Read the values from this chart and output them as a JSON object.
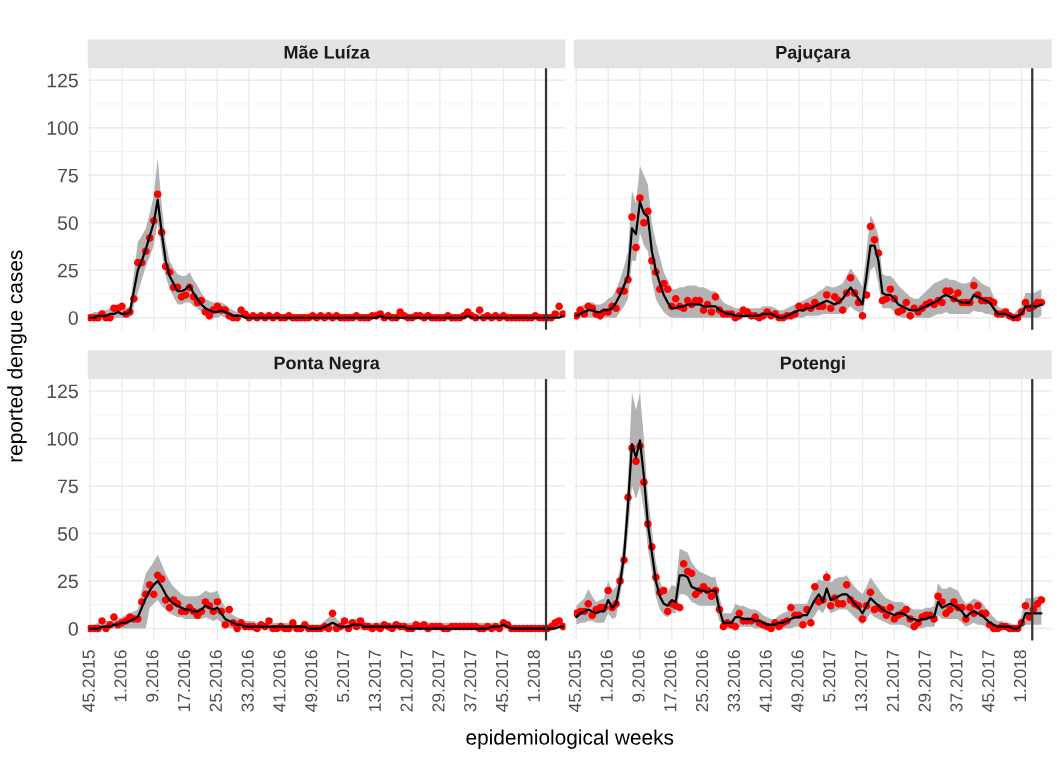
{
  "chart_data": [
    {
      "type": "line",
      "title": "Mãe Luíza",
      "ylabel": "reported dengue cases",
      "tick_labels": "y",
      "grid": true,
      "ylim": [
        -6.3,
        131.3
      ],
      "yticks": [
        0,
        25,
        50,
        75,
        100,
        125
      ],
      "categories": [
        "45.2015",
        null,
        null,
        null,
        null,
        null,
        null,
        null,
        "1.2016",
        null,
        null,
        null,
        null,
        null,
        null,
        null,
        "9.2016",
        null,
        null,
        null,
        null,
        null,
        null,
        null,
        "17.2016",
        null,
        null,
        null,
        null,
        null,
        null,
        null,
        "25.2016",
        null,
        null,
        null,
        null,
        null,
        null,
        null,
        "33.2016",
        null,
        null,
        null,
        null,
        null,
        null,
        null,
        "41.2016",
        null,
        null,
        null,
        null,
        null,
        null,
        null,
        "49.2016",
        null,
        null,
        null,
        null,
        null,
        null,
        null,
        "5.2017",
        null,
        null,
        null,
        null,
        null,
        null,
        null,
        "13.2017",
        null,
        null,
        null,
        null,
        null,
        null,
        null,
        "21.2017",
        null,
        null,
        null,
        null,
        null,
        null,
        null,
        "29.2017",
        null,
        null,
        null,
        null,
        null,
        null,
        null,
        "37.2017",
        null,
        null,
        null,
        null,
        null,
        null,
        null,
        "45.2017",
        null,
        null,
        null,
        null,
        null,
        null,
        null,
        "1.2018",
        null,
        null,
        null,
        null,
        null,
        null,
        null
      ],
      "series": [
        {
          "color": "#000000",
          "line_style": "solid",
          "values": [
            0,
            0,
            1,
            1,
            1,
            2,
            2,
            3,
            2,
            2,
            3,
            14,
            25,
            30,
            36,
            43,
            50,
            62,
            45,
            30,
            22,
            18,
            14,
            14,
            15,
            17,
            13,
            10,
            7,
            5,
            4,
            3,
            3,
            4,
            3,
            2,
            1,
            1,
            1,
            0,
            0,
            0,
            0,
            0,
            0,
            0,
            0,
            0,
            0,
            0,
            0,
            0,
            0,
            0,
            0,
            0,
            0,
            0,
            0,
            0,
            0,
            0,
            0,
            0,
            0,
            0,
            0,
            0,
            0,
            0,
            0,
            0,
            0,
            1,
            0,
            0,
            0,
            0,
            0,
            0,
            0,
            0,
            0,
            0,
            0,
            0,
            0,
            0,
            0,
            0,
            0,
            0,
            0,
            0,
            0,
            1,
            0,
            0,
            0,
            0,
            0,
            0,
            0,
            0,
            0,
            0,
            0,
            0,
            0,
            0,
            0,
            0,
            0,
            0,
            0,
            0,
            0,
            0,
            0,
            1
          ],
          "lower": [
            0,
            0,
            0,
            0,
            0,
            0,
            0,
            0,
            0,
            0,
            0,
            6,
            13,
            20,
            27,
            32,
            38,
            50,
            35,
            22,
            15,
            11,
            7,
            7,
            8,
            8,
            6,
            5,
            3,
            1,
            0,
            0,
            0,
            1,
            0,
            0,
            0,
            0,
            0,
            0,
            0,
            0,
            0,
            0,
            0,
            0,
            0,
            0,
            0,
            0,
            0,
            0,
            0,
            0,
            0,
            0,
            0,
            0,
            0,
            0,
            0,
            0,
            0,
            0,
            0,
            0,
            0,
            0,
            0,
            0,
            0,
            0,
            0,
            0,
            0,
            0,
            0,
            0,
            0,
            0,
            0,
            0,
            0,
            0,
            0,
            0,
            0,
            0,
            0,
            0,
            0,
            0,
            0,
            0,
            0,
            0,
            0,
            0,
            0,
            0,
            0,
            0,
            0,
            0,
            0,
            0,
            0,
            0,
            0,
            0,
            0,
            0,
            0,
            0,
            0,
            0,
            0,
            0,
            0,
            0
          ],
          "upper": [
            2,
            3,
            3,
            4,
            4,
            5,
            5,
            6,
            5,
            5,
            6,
            23,
            40,
            43,
            47,
            55,
            64,
            84,
            60,
            40,
            30,
            26,
            23,
            22,
            22,
            24,
            20,
            17,
            13,
            10,
            9,
            8,
            8,
            8,
            7,
            5,
            4,
            3,
            3,
            2,
            2,
            2,
            2,
            2,
            2,
            2,
            2,
            2,
            2,
            2,
            2,
            2,
            2,
            2,
            2,
            2,
            2,
            2,
            2,
            2,
            2,
            2,
            2,
            2,
            2,
            2,
            2,
            2,
            2,
            2,
            2,
            2,
            2,
            4,
            2,
            2,
            2,
            2,
            2,
            2,
            2,
            2,
            2,
            2,
            2,
            2,
            2,
            2,
            2,
            2,
            2,
            2,
            2,
            2,
            2,
            3,
            2,
            2,
            2,
            2,
            2,
            2,
            2,
            2,
            2,
            2,
            2,
            2,
            2,
            2,
            2,
            2,
            2,
            2,
            2,
            2,
            2,
            3,
            3,
            4
          ]
        },
        {
          "type": "scatter",
          "color": "#ff0000",
          "marker": "circle",
          "values": [
            0,
            0,
            0,
            2,
            0,
            0,
            5,
            5,
            6,
            2,
            3,
            10,
            29,
            29,
            35,
            42,
            51,
            65,
            45,
            27,
            24,
            16,
            16,
            11,
            12,
            16,
            11,
            8,
            9,
            3,
            1,
            4,
            6,
            4,
            4,
            1,
            0,
            0,
            4,
            2,
            0,
            1,
            0,
            1,
            0,
            1,
            0,
            1,
            0,
            0,
            1,
            0,
            0,
            0,
            0,
            0,
            1,
            0,
            1,
            0,
            1,
            0,
            1,
            0,
            0,
            0,
            0,
            1,
            0,
            0,
            0,
            1,
            1,
            2,
            0,
            1,
            0,
            0,
            3,
            1,
            0,
            0,
            1,
            1,
            0,
            1,
            0,
            0,
            0,
            0,
            1,
            0,
            0,
            0,
            1,
            3,
            1,
            0,
            4,
            0,
            1,
            0,
            1,
            0,
            1,
            0,
            0,
            0,
            0,
            0,
            0,
            0,
            1,
            0,
            0,
            0,
            0,
            2,
            6,
            2
          ]
        }
      ]
    },
    {
      "type": "line",
      "title": "Pajuçara",
      "tick_labels": false,
      "grid": true,
      "ylim": [
        -6.3,
        131.3
      ],
      "yticks": [
        0,
        25,
        50,
        75,
        100,
        125
      ],
      "categories": [
        "45.2015",
        null,
        null,
        null,
        null,
        null,
        null,
        null,
        "1.2016",
        null,
        null,
        null,
        null,
        null,
        null,
        null,
        "9.2016",
        null,
        null,
        null,
        null,
        null,
        null,
        null,
        "17.2016",
        null,
        null,
        null,
        null,
        null,
        null,
        null,
        "25.2016",
        null,
        null,
        null,
        null,
        null,
        null,
        null,
        "33.2016",
        null,
        null,
        null,
        null,
        null,
        null,
        null,
        "41.2016",
        null,
        null,
        null,
        null,
        null,
        null,
        null,
        "49.2016",
        null,
        null,
        null,
        null,
        null,
        null,
        null,
        "5.2017",
        null,
        null,
        null,
        null,
        null,
        null,
        null,
        "13.2017",
        null,
        null,
        null,
        null,
        null,
        null,
        null,
        "21.2017",
        null,
        null,
        null,
        null,
        null,
        null,
        null,
        "29.2017",
        null,
        null,
        null,
        null,
        null,
        null,
        null,
        "37.2017",
        null,
        null,
        null,
        null,
        null,
        null,
        null,
        "45.2017",
        null,
        null,
        null,
        null,
        null,
        null,
        null,
        "1.2018",
        null,
        null,
        null,
        null,
        null,
        null,
        null
      ],
      "series": [
        {
          "color": "#000000",
          "line_style": "solid",
          "values": [
            1,
            2,
            3,
            4,
            4,
            3,
            3,
            4,
            4,
            5,
            8,
            12,
            17,
            22,
            47,
            44,
            61,
            55,
            53,
            35,
            25,
            18,
            12,
            8,
            5,
            5,
            6,
            6,
            7,
            7,
            7,
            7,
            6,
            6,
            6,
            6,
            4,
            3,
            2,
            2,
            1,
            1,
            1,
            1,
            1,
            1,
            1,
            2,
            2,
            2,
            1,
            0,
            0,
            1,
            2,
            3,
            4,
            4,
            5,
            5,
            6,
            7,
            8,
            9,
            8,
            7,
            8,
            10,
            13,
            16,
            13,
            10,
            7,
            22,
            38,
            38,
            30,
            13,
            12,
            12,
            10,
            7,
            6,
            5,
            4,
            4,
            4,
            5,
            6,
            7,
            8,
            9,
            11,
            12,
            11,
            10,
            9,
            8,
            8,
            8,
            12,
            11,
            10,
            9,
            8,
            5,
            2,
            2,
            2,
            1,
            0,
            1,
            2,
            6,
            6,
            6,
            6,
            7,
            null,
            null
          ],
          "lower": [
            0,
            0,
            0,
            0,
            0,
            0,
            0,
            0,
            0,
            0,
            0,
            3,
            6,
            10,
            30,
            30,
            45,
            38,
            35,
            20,
            10,
            6,
            3,
            1,
            0,
            0,
            0,
            0,
            0,
            0,
            0,
            0,
            0,
            0,
            0,
            0,
            0,
            0,
            0,
            0,
            0,
            0,
            0,
            0,
            0,
            0,
            0,
            0,
            0,
            0,
            0,
            0,
            0,
            0,
            0,
            0,
            0,
            0,
            1,
            1,
            1,
            1,
            2,
            2,
            2,
            2,
            2,
            3,
            4,
            6,
            4,
            3,
            1,
            13,
            25,
            27,
            18,
            5,
            5,
            5,
            3,
            1,
            0,
            0,
            0,
            0,
            0,
            0,
            0,
            0,
            1,
            2,
            2,
            3,
            2,
            2,
            2,
            2,
            2,
            2,
            4,
            3,
            3,
            2,
            2,
            1,
            0,
            0,
            0,
            0,
            0,
            0,
            0,
            0,
            0,
            0,
            0,
            1,
            null,
            null
          ],
          "upper": [
            5,
            6,
            7,
            8,
            8,
            7,
            7,
            8,
            10,
            11,
            15,
            20,
            27,
            35,
            67,
            60,
            80,
            75,
            70,
            50,
            40,
            32,
            24,
            20,
            15,
            15,
            16,
            16,
            17,
            17,
            17,
            16,
            16,
            15,
            14,
            14,
            11,
            8,
            7,
            6,
            5,
            5,
            5,
            5,
            5,
            5,
            5,
            6,
            6,
            6,
            5,
            4,
            4,
            5,
            6,
            7,
            8,
            9,
            10,
            11,
            12,
            14,
            15,
            17,
            16,
            16,
            17,
            18,
            22,
            26,
            23,
            20,
            16,
            35,
            54,
            50,
            43,
            23,
            22,
            22,
            20,
            17,
            15,
            13,
            11,
            10,
            10,
            12,
            14,
            16,
            18,
            19,
            20,
            21,
            20,
            20,
            19,
            18,
            18,
            19,
            22,
            20,
            18,
            17,
            16,
            11,
            6,
            5,
            5,
            3,
            2,
            4,
            6,
            13,
            13,
            13,
            14,
            15,
            null,
            null
          ]
        },
        {
          "type": "scatter",
          "color": "#ff0000",
          "marker": "circle",
          "values": [
            1,
            4,
            2,
            6,
            5,
            2,
            1,
            3,
            3,
            6,
            5,
            14,
            14,
            20,
            53,
            37,
            63,
            50,
            56,
            30,
            24,
            15,
            18,
            15,
            6,
            10,
            6,
            5,
            9,
            7,
            9,
            9,
            4,
            7,
            3,
            11,
            4,
            2,
            2,
            2,
            0,
            1,
            4,
            3,
            1,
            1,
            0,
            1,
            3,
            1,
            2,
            0,
            0,
            1,
            1,
            2,
            6,
            5,
            6,
            5,
            8,
            6,
            6,
            12,
            5,
            11,
            9,
            4,
            13,
            21,
            13,
            8,
            1,
            12,
            48,
            41,
            34,
            9,
            10,
            15,
            10,
            3,
            4,
            8,
            1,
            5,
            3,
            5,
            7,
            8,
            7,
            9,
            8,
            14,
            14,
            10,
            13,
            8,
            8,
            8,
            17,
            12,
            9,
            9,
            9,
            8,
            2,
            2,
            3,
            1,
            0,
            0,
            3,
            8,
            5,
            6,
            8,
            8,
            null,
            null
          ]
        }
      ]
    },
    {
      "type": "line",
      "title": "Ponta Negra",
      "xlabel": "epidemiological weeks",
      "grid": true,
      "ylim": [
        -6.3,
        131.3
      ],
      "yticks": [
        0,
        25,
        50,
        75,
        100,
        125
      ],
      "categories": [
        "45.2015",
        null,
        null,
        null,
        null,
        null,
        null,
        null,
        "1.2016",
        null,
        null,
        null,
        null,
        null,
        null,
        null,
        "9.2016",
        null,
        null,
        null,
        null,
        null,
        null,
        null,
        "17.2016",
        null,
        null,
        null,
        null,
        null,
        null,
        null,
        "25.2016",
        null,
        null,
        null,
        null,
        null,
        null,
        null,
        "33.2016",
        null,
        null,
        null,
        null,
        null,
        null,
        null,
        "41.2016",
        null,
        null,
        null,
        null,
        null,
        null,
        null,
        "49.2016",
        null,
        null,
        null,
        null,
        null,
        null,
        null,
        "5.2017",
        null,
        null,
        null,
        null,
        null,
        null,
        null,
        "13.2017",
        null,
        null,
        null,
        null,
        null,
        null,
        null,
        "21.2017",
        null,
        null,
        null,
        null,
        null,
        null,
        null,
        "29.2017",
        null,
        null,
        null,
        null,
        null,
        null,
        null,
        "37.2017",
        null,
        null,
        null,
        null,
        null,
        null,
        null,
        "45.2017",
        null,
        null,
        null,
        null,
        null,
        null,
        null,
        "1.2018",
        null,
        null,
        null,
        null,
        null,
        null,
        null
      ],
      "series": [
        {
          "color": "#000000",
          "line_style": "solid",
          "values": [
            0,
            0,
            0,
            1,
            1,
            1,
            2,
            2,
            3,
            3,
            4,
            5,
            6,
            11,
            16,
            20,
            23,
            25,
            22,
            18,
            15,
            13,
            12,
            11,
            10,
            10,
            9,
            9,
            10,
            12,
            11,
            10,
            11,
            8,
            5,
            4,
            3,
            2,
            2,
            1,
            1,
            1,
            1,
            1,
            1,
            1,
            1,
            1,
            1,
            1,
            1,
            1,
            1,
            1,
            1,
            0,
            0,
            0,
            0,
            1,
            2,
            3,
            2,
            1,
            1,
            1,
            2,
            2,
            2,
            1,
            1,
            1,
            1,
            1,
            1,
            1,
            1,
            1,
            1,
            1,
            0,
            0,
            0,
            0,
            0,
            0,
            0,
            0,
            0,
            0,
            0,
            0,
            0,
            0,
            0,
            0,
            0,
            0,
            0,
            0,
            0,
            1,
            1,
            1,
            2,
            1,
            0,
            0,
            0,
            0,
            0,
            0,
            0,
            0,
            0,
            0,
            0,
            0,
            1,
            1
          ],
          "lower": [
            0,
            0,
            0,
            0,
            0,
            0,
            0,
            0,
            0,
            0,
            0,
            0,
            0,
            0,
            0,
            11,
            13,
            15,
            12,
            10,
            8,
            7,
            6,
            6,
            5,
            5,
            5,
            5,
            5,
            6,
            5,
            4,
            5,
            3,
            1,
            0,
            0,
            0,
            0,
            0,
            0,
            0,
            0,
            0,
            0,
            0,
            0,
            0,
            0,
            0,
            0,
            0,
            0,
            0,
            0,
            0,
            0,
            0,
            0,
            0,
            0,
            0,
            0,
            0,
            0,
            0,
            0,
            0,
            0,
            0,
            0,
            0,
            0,
            0,
            0,
            0,
            0,
            0,
            0,
            0,
            0,
            0,
            0,
            0,
            0,
            0,
            0,
            0,
            0,
            0,
            0,
            0,
            0,
            0,
            0,
            0,
            0,
            0,
            0,
            0,
            0,
            0,
            0,
            0,
            0,
            0,
            0,
            0,
            0,
            0,
            0,
            0,
            0,
            0,
            0,
            0,
            0,
            0,
            0,
            0
          ],
          "upper": [
            2,
            2,
            3,
            3,
            4,
            4,
            5,
            5,
            6,
            7,
            8,
            9,
            10,
            20,
            29,
            32,
            35,
            39,
            34,
            29,
            25,
            22,
            20,
            18,
            17,
            17,
            17,
            17,
            18,
            20,
            19,
            19,
            20,
            15,
            11,
            9,
            7,
            6,
            5,
            4,
            4,
            4,
            3,
            3,
            3,
            3,
            3,
            3,
            3,
            3,
            3,
            3,
            2,
            2,
            2,
            2,
            2,
            2,
            2,
            4,
            6,
            8,
            5,
            3,
            4,
            4,
            5,
            5,
            4,
            4,
            3,
            3,
            3,
            3,
            3,
            3,
            3,
            3,
            3,
            3,
            3,
            3,
            3,
            3,
            3,
            3,
            3,
            3,
            3,
            3,
            3,
            3,
            3,
            3,
            3,
            3,
            3,
            3,
            3,
            3,
            3,
            3,
            3,
            3,
            3,
            2,
            1,
            1,
            1,
            1,
            1,
            1,
            1,
            1,
            1,
            1,
            2,
            3,
            3,
            4
          ]
        },
        {
          "type": "scatter",
          "color": "#ff0000",
          "marker": "circle",
          "values": [
            0,
            0,
            0,
            4,
            0,
            2,
            6,
            2,
            3,
            4,
            6,
            5,
            5,
            14,
            18,
            23,
            18,
            28,
            26,
            15,
            11,
            15,
            13,
            9,
            9,
            11,
            9,
            7,
            9,
            14,
            12,
            9,
            14,
            9,
            2,
            10,
            3,
            0,
            3,
            1,
            1,
            1,
            0,
            2,
            1,
            4,
            0,
            0,
            1,
            0,
            0,
            3,
            0,
            0,
            2,
            0,
            0,
            0,
            0,
            1,
            0,
            8,
            0,
            1,
            4,
            0,
            3,
            1,
            4,
            1,
            1,
            0,
            1,
            0,
            2,
            1,
            0,
            2,
            1,
            1,
            0,
            0,
            2,
            1,
            2,
            0,
            1,
            1,
            1,
            0,
            0,
            1,
            1,
            1,
            1,
            1,
            1,
            1,
            0,
            0,
            1,
            0,
            1,
            0,
            3,
            2,
            0,
            0,
            0,
            0,
            0,
            0,
            0,
            0,
            0,
            0,
            1,
            3,
            4,
            1
          ]
        }
      ]
    },
    {
      "type": "line",
      "title": "Potengi",
      "tick_labels": "x",
      "grid": true,
      "ylim": [
        -6.3,
        131.3
      ],
      "yticks": [
        0,
        25,
        50,
        75,
        100,
        125
      ],
      "categories": [
        "45.2015",
        null,
        null,
        null,
        null,
        null,
        null,
        null,
        "1.2016",
        null,
        null,
        null,
        null,
        null,
        null,
        null,
        "9.2016",
        null,
        null,
        null,
        null,
        null,
        null,
        null,
        "17.2016",
        null,
        null,
        null,
        null,
        null,
        null,
        null,
        "25.2016",
        null,
        null,
        null,
        null,
        null,
        null,
        null,
        "33.2016",
        null,
        null,
        null,
        null,
        null,
        null,
        null,
        "41.2016",
        null,
        null,
        null,
        null,
        null,
        null,
        null,
        "49.2016",
        null,
        null,
        null,
        null,
        null,
        null,
        null,
        "5.2017",
        null,
        null,
        null,
        null,
        null,
        null,
        null,
        "13.2017",
        null,
        null,
        null,
        null,
        null,
        null,
        null,
        "21.2017",
        null,
        null,
        null,
        null,
        null,
        null,
        null,
        "29.2017",
        null,
        null,
        null,
        null,
        null,
        null,
        null,
        "37.2017",
        null,
        null,
        null,
        null,
        null,
        null,
        null,
        "45.2017",
        null,
        null,
        null,
        null,
        null,
        null,
        null,
        "1.2018",
        null,
        null,
        null,
        null,
        null,
        null,
        null
      ],
      "series": [
        {
          "color": "#000000",
          "line_style": "solid",
          "values": [
            6,
            8,
            9,
            10,
            9,
            8,
            9,
            9,
            15,
            11,
            13,
            24,
            38,
            65,
            97,
            90,
            99,
            80,
            55,
            40,
            25,
            17,
            13,
            12,
            15,
            14,
            28,
            28,
            27,
            22,
            21,
            20,
            20,
            19,
            20,
            20,
            10,
            3,
            3,
            3,
            6,
            6,
            5,
            5,
            5,
            4,
            4,
            3,
            2,
            2,
            2,
            3,
            3,
            4,
            5,
            6,
            6,
            7,
            7,
            11,
            15,
            18,
            14,
            21,
            15,
            16,
            17,
            18,
            18,
            16,
            13,
            11,
            8,
            12,
            16,
            14,
            12,
            10,
            9,
            8,
            7,
            8,
            8,
            7,
            5,
            5,
            4,
            5,
            5,
            6,
            6,
            14,
            11,
            12,
            13,
            12,
            11,
            9,
            6,
            8,
            9,
            8,
            7,
            5,
            3,
            2,
            1,
            1,
            1,
            1,
            0,
            0,
            2,
            8,
            8,
            8,
            8,
            8,
            null,
            null
          ],
          "lower": [
            2,
            3,
            3,
            4,
            4,
            3,
            3,
            3,
            8,
            5,
            6,
            17,
            30,
            50,
            75,
            68,
            75,
            62,
            42,
            30,
            17,
            10,
            7,
            6,
            8,
            8,
            18,
            18,
            17,
            14,
            13,
            12,
            12,
            12,
            12,
            12,
            4,
            0,
            0,
            0,
            1,
            1,
            1,
            1,
            1,
            0,
            0,
            0,
            0,
            0,
            0,
            0,
            0,
            0,
            0,
            1,
            1,
            1,
            2,
            4,
            7,
            10,
            8,
            12,
            8,
            9,
            10,
            10,
            10,
            8,
            6,
            4,
            2,
            5,
            8,
            6,
            5,
            4,
            3,
            2,
            2,
            2,
            2,
            1,
            0,
            0,
            0,
            0,
            1,
            1,
            1,
            7,
            5,
            5,
            5,
            5,
            5,
            3,
            1,
            2,
            3,
            2,
            2,
            1,
            0,
            0,
            0,
            0,
            0,
            0,
            0,
            0,
            0,
            2,
            2,
            2,
            2,
            2,
            null,
            null
          ],
          "upper": [
            12,
            14,
            16,
            21,
            17,
            14,
            15,
            16,
            25,
            20,
            22,
            32,
            48,
            80,
            124,
            115,
            124,
            100,
            70,
            52,
            35,
            25,
            20,
            19,
            23,
            22,
            42,
            41,
            40,
            35,
            32,
            30,
            29,
            28,
            27,
            27,
            17,
            8,
            8,
            8,
            13,
            12,
            12,
            11,
            10,
            10,
            9,
            7,
            6,
            5,
            5,
            7,
            8,
            9,
            11,
            13,
            13,
            13,
            13,
            18,
            23,
            26,
            25,
            31,
            24,
            26,
            27,
            27,
            28,
            25,
            22,
            20,
            18,
            22,
            27,
            24,
            21,
            18,
            16,
            15,
            14,
            14,
            14,
            12,
            11,
            10,
            10,
            10,
            11,
            11,
            12,
            24,
            21,
            21,
            22,
            21,
            20,
            16,
            13,
            14,
            16,
            15,
            14,
            11,
            8,
            6,
            4,
            4,
            3,
            3,
            2,
            2,
            7,
            16,
            16,
            16,
            17,
            17,
            null,
            null
          ]
        },
        {
          "type": "scatter",
          "color": "#ff0000",
          "marker": "circle",
          "values": [
            8,
            9,
            9,
            13,
            7,
            10,
            11,
            11,
            20,
            11,
            13,
            25,
            36,
            69,
            95,
            88,
            96,
            77,
            55,
            43,
            27,
            19,
            20,
            9,
            13,
            12,
            11,
            34,
            30,
            29,
            18,
            20,
            22,
            20,
            17,
            20,
            10,
            1,
            3,
            2,
            1,
            8,
            4,
            4,
            4,
            6,
            3,
            2,
            1,
            0,
            3,
            1,
            3,
            4,
            11,
            7,
            7,
            2,
            10,
            3,
            22,
            14,
            15,
            27,
            12,
            16,
            13,
            13,
            23,
            15,
            13,
            12,
            5,
            12,
            19,
            10,
            11,
            10,
            7,
            11,
            5,
            7,
            8,
            10,
            5,
            1,
            3,
            6,
            7,
            7,
            5,
            17,
            14,
            8,
            10,
            14,
            11,
            11,
            5,
            11,
            8,
            12,
            8,
            8,
            2,
            0,
            0,
            1,
            1,
            0,
            0,
            0,
            3,
            12,
            6,
            10,
            13,
            15,
            null,
            null
          ]
        }
      ]
    }
  ]
}
